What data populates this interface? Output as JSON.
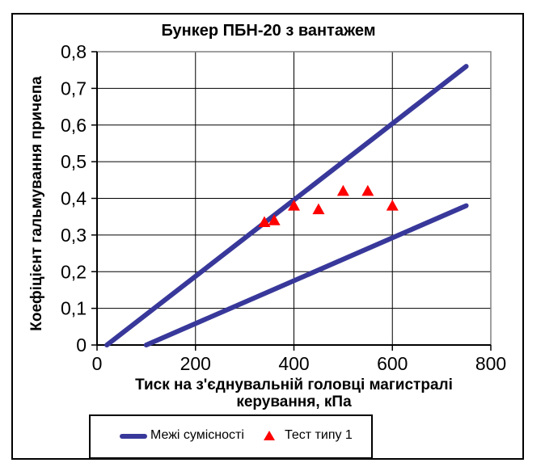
{
  "chart_data": {
    "type": "line+scatter",
    "title": "Бункер ПБН-20 з вантажем",
    "xlabel": "Тиск на з'єднувальній головці магистралі керування, кПа",
    "ylabel": "Коефіцієнт гальмування причепа",
    "xlim": [
      0,
      800
    ],
    "ylim": [
      0,
      0.8
    ],
    "x_ticks": [
      0,
      200,
      400,
      600,
      800
    ],
    "x_tick_labels": [
      "0",
      "200",
      "400",
      "600",
      "800"
    ],
    "y_ticks": [
      0,
      0.1,
      0.2,
      0.3,
      0.4,
      0.5,
      0.6,
      0.7,
      0.8
    ],
    "y_tick_labels": [
      "0",
      "0,1",
      "0,2",
      "0,3",
      "0,4",
      "0,5",
      "0,6",
      "0,7",
      "0,8"
    ],
    "grid": true,
    "legend_position": "bottom",
    "colors": {
      "band_line": "#38389B",
      "test_marker": "#FF0000",
      "gridline": "#000000",
      "plot_frame": "#808080",
      "axis_line": "#000000"
    },
    "series": [
      {
        "name": "Межі сумісності",
        "type": "line",
        "color": "#38389B",
        "segments": [
          {
            "label": "upper-compatibility-limit",
            "points": [
              [
                20,
                0
              ],
              [
                750,
                0.76
              ]
            ]
          },
          {
            "label": "lower-compatibility-limit",
            "points": [
              [
                100,
                0
              ],
              [
                750,
                0.38
              ]
            ]
          }
        ]
      },
      {
        "name": "Тест типу 1",
        "type": "scatter",
        "marker": "triangle",
        "color": "#FF0000",
        "points": [
          [
            340,
            0.335
          ],
          [
            360,
            0.34
          ],
          [
            400,
            0.38
          ],
          [
            450,
            0.37
          ],
          [
            500,
            0.42
          ],
          [
            550,
            0.42
          ],
          [
            600,
            0.38
          ]
        ]
      }
    ]
  }
}
